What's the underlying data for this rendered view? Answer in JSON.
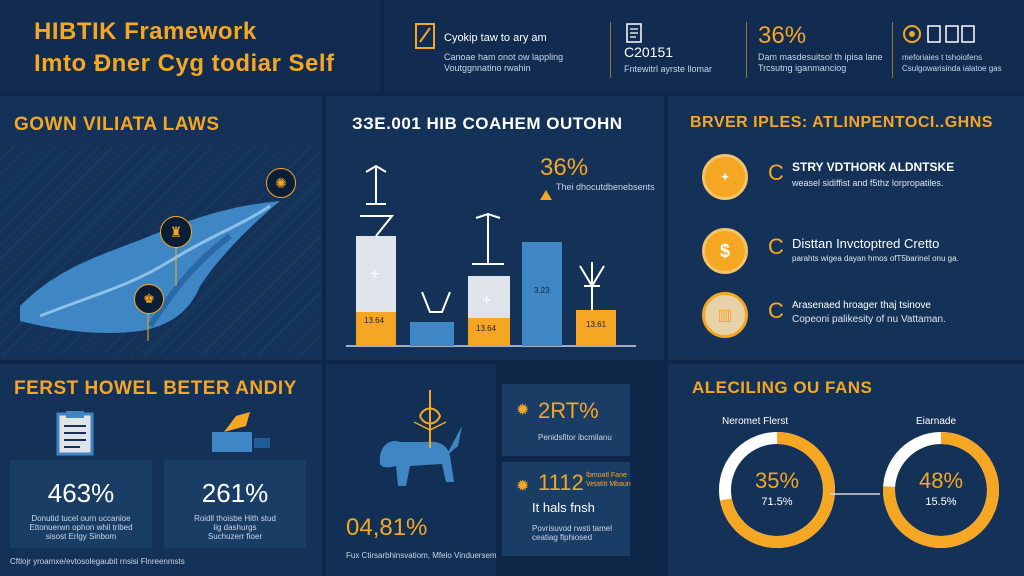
{
  "header": {
    "title_line1": "HIBTIK Framework",
    "title_line2": "Imto Ðner Cyg todiar Self",
    "stats": [
      {
        "value": "Cyokip taw to ary am",
        "desc_line1": "Canoae ham onot ow lappling",
        "desc_line2": "Voutggnnatino rwahin",
        "icon": "pencil-box-icon"
      },
      {
        "value": "C20151",
        "desc_line1": "Fntewitrl ayrste llomar",
        "desc_line2": "",
        "icon": "document-icon"
      },
      {
        "value": "36%",
        "desc_line1": "Dam masdesuitsol th ipisa lane",
        "desc_line2": "Trcsutng iganmanciog",
        "icon": "gauge-icon"
      },
      {
        "value": "",
        "desc_line1": "meforiaies t tshoiofens",
        "desc_line2": "Csulgowarisinda ialatoe gas",
        "icon": "target-icon"
      }
    ]
  },
  "panel_laws": {
    "title": "GOWN VILIATA LAWS",
    "markers": [
      "lamp-icon",
      "scroll-icon",
      "sun-icon"
    ]
  },
  "panel_chart": {
    "title": "ЗЗЕ.001 HIB COAHEM OUTOHN",
    "callout_value": "36%",
    "callout_desc": "Thei dhocutdbenebsents",
    "bars": [
      {
        "label": "13.64",
        "plus": "+"
      },
      {
        "label": "",
        "plus": ""
      },
      {
        "label": "13.64",
        "plus": "+"
      },
      {
        "label": "3.23",
        "plus": ""
      },
      {
        "label": "13.61",
        "plus": ""
      }
    ]
  },
  "panel_principles": {
    "title": "BRVER IPLES: ATLINPENTOCI..GHNS",
    "items": [
      {
        "heading": "STRY VDTHORK ALDNTSKE",
        "desc": "weasel sidiffist and f5thz lorpropatiles.",
        "icon": "coin-icon"
      },
      {
        "heading": "Disttan Invctoptred Cretto",
        "desc": "parahts wigea dayan hmos ofT5barinel onu ga.",
        "icon": "dollar-coin-icon"
      },
      {
        "heading": "Arasenaed hroager thaj tsinove",
        "desc": "Copeoni palikesity of nu Vattaman.",
        "icon": "beer-icon"
      }
    ]
  },
  "panel_better": {
    "title": "FERST HOWEL BETER ANDIY",
    "cards": [
      {
        "value": "463%",
        "desc_line1": "Donutid tucel ourn uccanioe",
        "desc_line2": "Ettonuerwn ophon whil tribed",
        "desc_line3": "sisost Erlgy Sinbom",
        "icon": "clipboard-icon"
      },
      {
        "value": "261%",
        "desc_line1": "Roidll thoisbe Hith stud",
        "desc_line2": "lig dashurgs",
        "desc_line3": "Suchuzerr fioer",
        "icon": "gramophone-icon"
      }
    ],
    "footer": "Cftlojr yroamxe/evtosolegaubit rnsisi Flnreenmsts"
  },
  "panel_mid": {
    "bottom_value": "04,81%",
    "bottom_desc": "Fux Ctirsarbhinsvatiom, Mfelo Vinduersem",
    "stat_a_value": "2RT%",
    "stat_a_desc": "Penidsfitor ibcmilanu",
    "stat_b_value": "1112",
    "stat_b_note_line1": "Ibmoatl Fane",
    "stat_b_note_line2": "Vetatitt Mbaun",
    "stat_b_sub": "It hals fnsh",
    "stat_b_desc_line1": "Povrisuvod rwsti tamel",
    "stat_b_desc_line2": "ceatiag flphiosed"
  },
  "panel_fans": {
    "title": "ALECILING OU FANS",
    "donuts": [
      {
        "label": "Neromet Flerst",
        "value": "35%",
        "sub": "71.5%",
        "fraction": 0.72
      },
      {
        "label": "Eiarnade",
        "value": "48%",
        "sub": "15.5%",
        "fraction": 0.76
      }
    ]
  },
  "colors": {
    "bg": "#0e2748",
    "panel": "#143257",
    "accent": "#f5a623",
    "blue": "#3f86c5",
    "light": "#dfe3ea"
  }
}
